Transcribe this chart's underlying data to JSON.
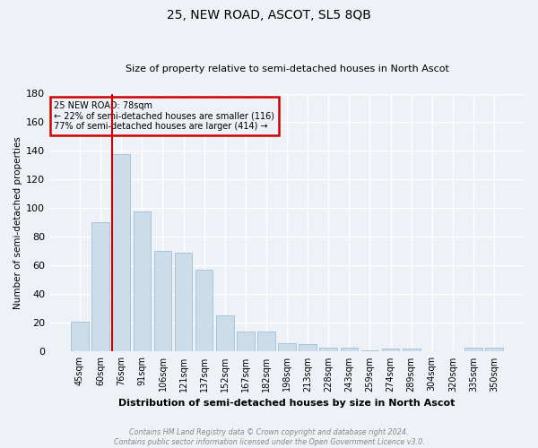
{
  "title": "25, NEW ROAD, ASCOT, SL5 8QB",
  "subtitle": "Size of property relative to semi-detached houses in North Ascot",
  "xlabel": "Distribution of semi-detached houses by size in North Ascot",
  "ylabel": "Number of semi-detached properties",
  "categories": [
    "45sqm",
    "60sqm",
    "76sqm",
    "91sqm",
    "106sqm",
    "121sqm",
    "137sqm",
    "152sqm",
    "167sqm",
    "182sqm",
    "198sqm",
    "213sqm",
    "228sqm",
    "243sqm",
    "259sqm",
    "274sqm",
    "289sqm",
    "304sqm",
    "320sqm",
    "335sqm",
    "350sqm"
  ],
  "values": [
    21,
    90,
    138,
    98,
    70,
    69,
    57,
    25,
    14,
    14,
    6,
    5,
    3,
    3,
    1,
    2,
    2,
    0,
    0,
    3,
    3
  ],
  "bar_color": "#ccdde9",
  "bar_edge_color": "#a8c4d8",
  "highlight_bar_index": 2,
  "highlight_line_color": "#cc0000",
  "ylim": [
    0,
    180
  ],
  "yticks": [
    0,
    20,
    40,
    60,
    80,
    100,
    120,
    140,
    160,
    180
  ],
  "annotation_title": "25 NEW ROAD: 78sqm",
  "annotation_line1": "← 22% of semi-detached houses are smaller (116)",
  "annotation_line2": "77% of semi-detached houses are larger (414) →",
  "annotation_box_color": "#cc0000",
  "footnote1": "Contains HM Land Registry data © Crown copyright and database right 2024.",
  "footnote2": "Contains public sector information licensed under the Open Government Licence v3.0.",
  "background_color": "#eef2f7",
  "grid_color": "#ffffff"
}
